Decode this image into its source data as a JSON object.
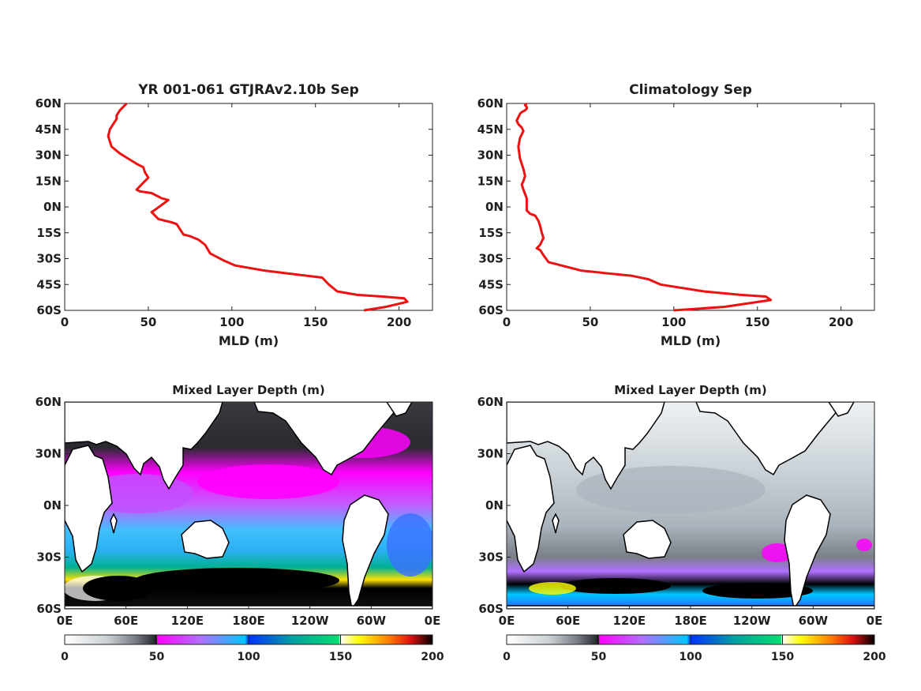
{
  "colors": {
    "profile_line": "#ee1111",
    "land": "#ffffff",
    "coast": "#000000",
    "colormap_stops": [
      "#ffffff",
      "#c8cfd2",
      "#7a7f88",
      "#2a2a30",
      "#000000",
      "#ff00ff",
      "#b070ff",
      "#00c8ff",
      "#0030ff",
      "#00a0a0",
      "#00e070",
      "#ffff00",
      "#ff8000",
      "#e01010",
      "#000000"
    ]
  },
  "chart_data": [
    {
      "type": "line",
      "title": "YR 001-061 GTJRAv2.10b Sep",
      "xlabel": "MLD (m)",
      "xlim": [
        0,
        220
      ],
      "ylim": [
        -60,
        60
      ],
      "xticks": [
        "0",
        "50",
        "100",
        "150",
        "200"
      ],
      "yticks": [
        "60N",
        "45N",
        "30N",
        "15N",
        "0N",
        "15S",
        "30S",
        "45S",
        "60S"
      ],
      "grid": false,
      "series": [
        {
          "x": [
            179,
            192,
            205,
            203,
            190,
            175,
            163,
            158,
            154,
            120,
            102,
            95,
            87,
            84,
            80,
            75,
            71,
            69,
            67,
            64,
            60,
            56,
            52,
            55,
            62,
            58,
            52,
            45,
            43,
            46,
            50,
            48,
            47,
            43,
            38,
            33,
            28,
            26,
            27,
            29,
            31,
            31,
            33,
            37
          ],
          "y": [
            -60,
            -58,
            -55,
            -53,
            -52,
            -51,
            -49,
            -45,
            -41,
            -37,
            -34,
            -31,
            -27,
            -22,
            -19,
            -17,
            -16,
            -13,
            -10,
            -9,
            -8,
            -7,
            -3,
            -1,
            4,
            5,
            8,
            9,
            10,
            13,
            17,
            20,
            23,
            25,
            28,
            31,
            35,
            41,
            45,
            48,
            51,
            53,
            56,
            60
          ]
        }
      ]
    },
    {
      "type": "line",
      "title": "Climatology Sep",
      "xlabel": "MLD (m)",
      "xlim": [
        0,
        220
      ],
      "ylim": [
        -60,
        60
      ],
      "xticks": [
        "0",
        "50",
        "100",
        "150",
        "200"
      ],
      "yticks": [
        "60N",
        "45N",
        "30N",
        "15N",
        "0N",
        "15S",
        "30S",
        "45S",
        "60S"
      ],
      "grid": false,
      "series": [
        {
          "x": [
            100,
            130,
            158,
            155,
            140,
            118,
            92,
            85,
            75,
            45,
            25,
            22,
            20,
            18,
            20,
            22,
            21,
            20,
            19,
            17,
            14,
            12,
            12,
            12,
            10,
            9,
            10,
            11,
            10,
            8,
            7,
            8,
            10,
            9,
            7,
            6,
            7,
            8,
            9,
            11,
            12,
            12,
            11,
            12
          ],
          "y": [
            -60,
            -58,
            -54,
            -52,
            -51,
            -49,
            -45,
            -42,
            -40,
            -37,
            -32,
            -28,
            -25,
            -24,
            -22,
            -18,
            -15,
            -11,
            -8,
            -5,
            -4,
            -2,
            0,
            5,
            10,
            13,
            15,
            18,
            22,
            28,
            35,
            40,
            44,
            46,
            48,
            50,
            52,
            54,
            55,
            56,
            57,
            58,
            59,
            60
          ]
        }
      ]
    },
    {
      "type": "heatmap",
      "title": "Mixed Layer Depth (m)",
      "xticks": [
        "0E",
        "60E",
        "120E",
        "180E",
        "120W",
        "60W",
        "0E"
      ],
      "yticks": [
        "60N",
        "30N",
        "0N",
        "30S",
        "60S"
      ],
      "colorbar": {
        "range": [
          0,
          200
        ],
        "ticks": [
          "0",
          "50",
          "100",
          "150",
          "200"
        ]
      }
    },
    {
      "type": "heatmap",
      "title": "Mixed Layer Depth (m)",
      "xticks": [
        "0E",
        "60E",
        "120E",
        "180E",
        "120W",
        "60W",
        "0E"
      ],
      "yticks": [
        "60N",
        "30N",
        "0N",
        "30S",
        "60S"
      ],
      "colorbar": {
        "range": [
          0,
          200
        ],
        "ticks": [
          "0",
          "50",
          "100",
          "150",
          "200"
        ]
      }
    }
  ]
}
